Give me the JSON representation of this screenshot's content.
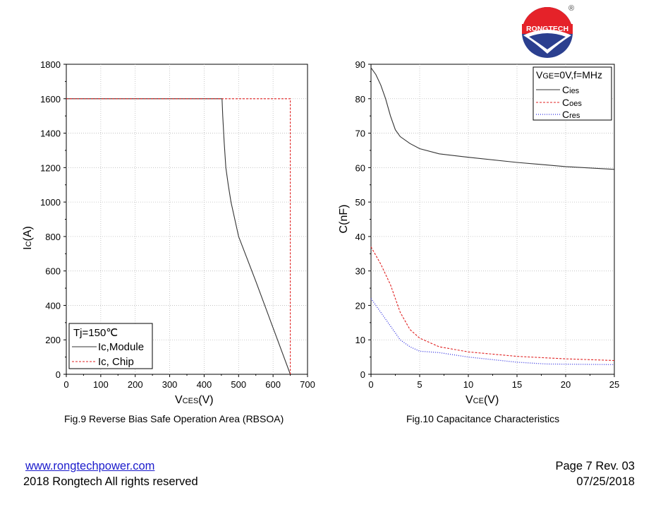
{
  "brand": {
    "logo_text": "RONGTECH",
    "registered_mark": "®"
  },
  "colors": {
    "module": "#333333",
    "chip": "#e02020",
    "cies": "#333333",
    "coes": "#e02020",
    "cres": "#3030e0",
    "link": "#1a1acc",
    "logo_red": "#e52229",
    "logo_blue": "#2b3f8f"
  },
  "chart_data": [
    {
      "type": "line",
      "title": "",
      "xlabel": {
        "main": "V",
        "sub": "CES",
        "unit": "(V)"
      },
      "ylabel": {
        "main": "I",
        "sub": "C",
        "unit": "(A)"
      },
      "xlim": [
        0,
        700
      ],
      "ylim": [
        0,
        1800
      ],
      "x_ticks": [
        "0",
        "100",
        "200",
        "300",
        "400",
        "500",
        "600",
        "700"
      ],
      "y_ticks": [
        "0",
        "200",
        "400",
        "600",
        "800",
        "1000",
        "1200",
        "1400",
        "1600",
        "1800"
      ],
      "grid": true,
      "legend_position": "bottom-left",
      "legend_title": "Tj=150℃",
      "series": [
        {
          "name": "Ic,Module",
          "style": "solid",
          "color": "#333333",
          "x": [
            0,
            452,
            454,
            458,
            463,
            470,
            478,
            500,
            550,
            600,
            650
          ],
          "y": [
            1600,
            1600,
            1500,
            1350,
            1200,
            1100,
            1000,
            800,
            540,
            270,
            0
          ]
        },
        {
          "name": "Ic, Chip",
          "style": "dashed",
          "color": "#e02020",
          "x": [
            0,
            650,
            650
          ],
          "y": [
            1600,
            1600,
            0
          ]
        }
      ]
    },
    {
      "type": "line",
      "title": "",
      "xlabel": {
        "main": "V",
        "sub": "CE",
        "unit": "(V)"
      },
      "ylabel": {
        "main": "C(nF)",
        "sub": "",
        "unit": ""
      },
      "xlim": [
        0,
        25
      ],
      "ylim": [
        0,
        90
      ],
      "x_ticks": [
        "0",
        "5",
        "10",
        "15",
        "20",
        "25"
      ],
      "y_ticks": [
        "0",
        "10",
        "20",
        "30",
        "40",
        "50",
        "60",
        "70",
        "80",
        "90"
      ],
      "grid": true,
      "legend_position": "top-right",
      "legend_title": "VGE=0V,f=MHz",
      "series": [
        {
          "name": "Cies",
          "style": "solid",
          "color": "#333333",
          "x": [
            0,
            0.5,
            1,
            1.5,
            2,
            2.5,
            3,
            4,
            5,
            7,
            10,
            15,
            20,
            25
          ],
          "y": [
            89,
            87,
            84,
            80,
            75,
            71,
            69,
            67,
            65.5,
            64,
            63,
            61.5,
            60.3,
            59.5
          ]
        },
        {
          "name": "Coes",
          "style": "dashed",
          "color": "#e02020",
          "x": [
            0,
            1,
            2,
            3,
            4,
            5,
            7,
            10,
            15,
            20,
            25
          ],
          "y": [
            37,
            32,
            26,
            18,
            13,
            10.5,
            8,
            6.5,
            5.2,
            4.5,
            4
          ]
        },
        {
          "name": "Cres",
          "style": "dotted",
          "color": "#3030e0",
          "x": [
            0,
            1,
            2,
            3,
            4,
            5,
            7,
            10,
            15,
            18,
            25
          ],
          "y": [
            22,
            18,
            14,
            10,
            8,
            6.7,
            6.3,
            5,
            3.5,
            3,
            2.8
          ]
        }
      ]
    }
  ],
  "legend1": {
    "title": "Tj=150℃",
    "items": [
      {
        "label": "Ic,Module"
      },
      {
        "label": "Ic, Chip"
      }
    ]
  },
  "legend2": {
    "title_main": "V",
    "title_sub": "GE",
    "title_rest": "=0V,f=MHz",
    "items": [
      {
        "main": "C",
        "sub": "ies"
      },
      {
        "main": "C",
        "sub": "oes"
      },
      {
        "main": "C",
        "sub": "res"
      }
    ]
  },
  "captions": {
    "fig9": "Fig.9 Reverse Bias Safe Operation Area (RBSOA)",
    "fig10": "Fig.10 Capacitance Characteristics"
  },
  "footer": {
    "website": "www.rongtechpower.com",
    "copyright": "2018 Rongtech All rights reserved",
    "page": "Page 7  Rev. 03",
    "date": "07/25/2018"
  }
}
